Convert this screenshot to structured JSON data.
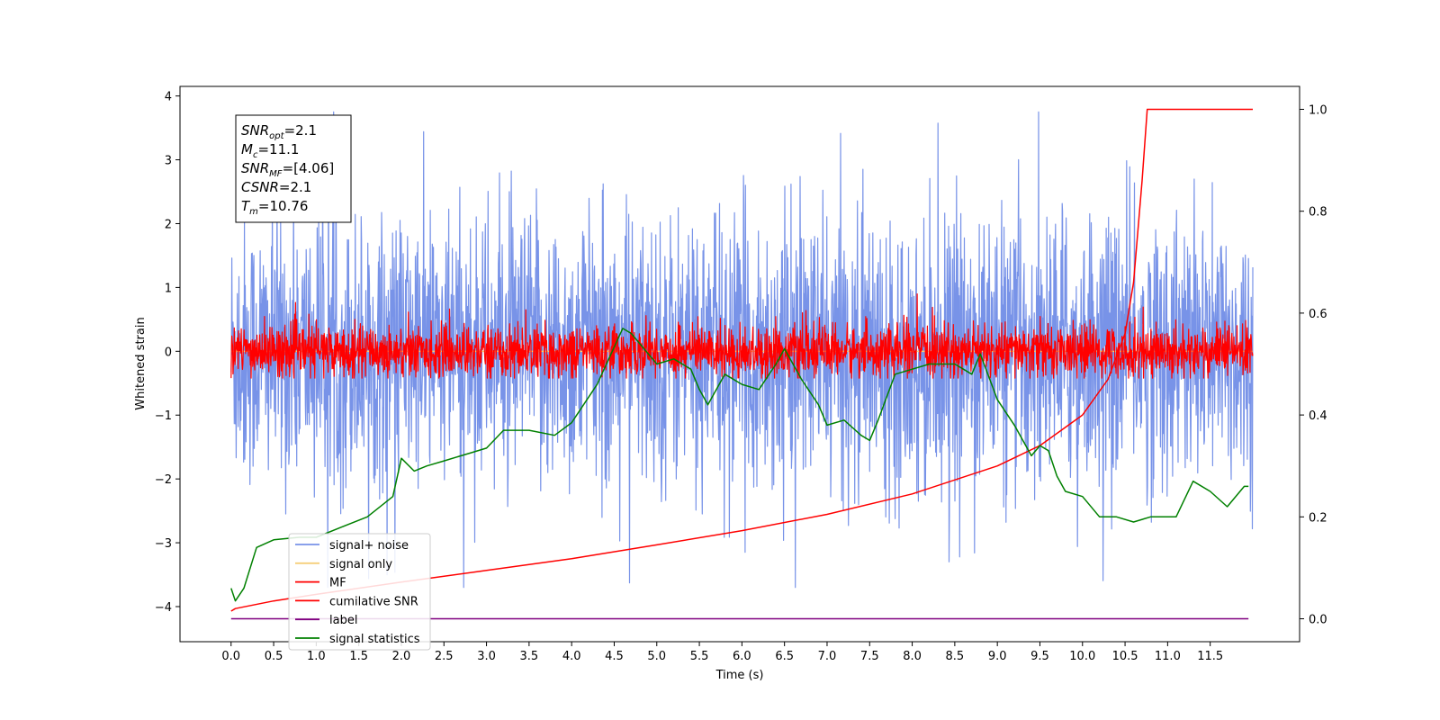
{
  "chart_data": {
    "type": "line",
    "xlabel": "Time (s)",
    "ylabel": "Whitened strain",
    "xlim": [
      -0.6,
      12.55
    ],
    "ylim": [
      -4.55,
      4.15
    ],
    "y2lim": [
      -0.045,
      1.045
    ],
    "x_ticks": [
      0.0,
      0.5,
      1.0,
      1.5,
      2.0,
      2.5,
      3.0,
      3.5,
      4.0,
      4.5,
      5.0,
      5.5,
      6.0,
      6.5,
      7.0,
      7.5,
      8.0,
      8.5,
      9.0,
      9.5,
      10.0,
      10.5,
      11.0,
      11.5
    ],
    "x_tick_labels": [
      "0.0",
      "0.5",
      "1.0",
      "1.5",
      "2.0",
      "2.5",
      "3.0",
      "3.5",
      "4.0",
      "4.5",
      "5.0",
      "5.5",
      "6.0",
      "6.5",
      "7.0",
      "7.5",
      "8.0",
      "8.5",
      "9.0",
      "9.5",
      "10.0",
      "10.5",
      "11.0",
      "11.5"
    ],
    "y_ticks": [
      -4,
      -3,
      -2,
      -1,
      0,
      1,
      2,
      3,
      4
    ],
    "y_tick_labels": [
      "−4",
      "−3",
      "−2",
      "−1",
      "0",
      "1",
      "2",
      "3",
      "4"
    ],
    "y2_ticks": [
      0.0,
      0.2,
      0.4,
      0.6,
      0.8,
      1.0
    ],
    "y2_tick_labels": [
      "0.0",
      "0.2",
      "0.4",
      "0.6",
      "0.8",
      "1.0"
    ],
    "legend_position": "lower-left",
    "annotation": [
      {
        "base": "SNR",
        "sub": "opt",
        "rest": "=2.1"
      },
      {
        "base": "M",
        "sub": "c",
        "rest": "=11.1"
      },
      {
        "base": "SNR",
        "sub": "MF",
        "rest": "=[4.06]"
      },
      {
        "base": "CSNR",
        "sub": "",
        "rest": "=2.1"
      },
      {
        "base": "T",
        "sub": "m",
        "rest": "=10.76"
      }
    ],
    "series": [
      {
        "name": "signal+ noise",
        "color": "#7893e8",
        "axis": "left",
        "kind": "noise",
        "x_range": [
          0.0,
          12.0
        ],
        "amplitude_envelope": [
          -3.7,
          3.75
        ]
      },
      {
        "name": "signal only",
        "color": "#f5cf7a",
        "axis": "left",
        "kind": "flat",
        "x_range": [
          0.0,
          12.0
        ],
        "value": 0.0
      },
      {
        "name": "MF",
        "color": "#ff0000",
        "axis": "left",
        "kind": "noise",
        "x_range": [
          0.0,
          12.0
        ],
        "amplitude_envelope": [
          -0.42,
          0.95
        ]
      },
      {
        "name": "cumilative SNR",
        "color": "#ff0000",
        "axis": "right",
        "x": [
          0.0,
          0.05,
          0.5,
          1.0,
          2.0,
          3.0,
          4.0,
          5.0,
          6.0,
          7.0,
          8.0,
          9.0,
          9.5,
          10.0,
          10.3,
          10.5,
          10.6,
          10.7,
          10.76,
          12.0
        ],
        "y": [
          0.015,
          0.02,
          0.035,
          0.048,
          0.072,
          0.095,
          0.118,
          0.145,
          0.173,
          0.205,
          0.245,
          0.3,
          0.34,
          0.4,
          0.47,
          0.56,
          0.66,
          0.86,
          1.0,
          1.0
        ]
      },
      {
        "name": "label",
        "color": "#800080",
        "axis": "right",
        "x": [
          0.0,
          11.95
        ],
        "y": [
          0.0,
          0.0
        ]
      },
      {
        "name": "signal statistics",
        "color": "#008000",
        "axis": "right",
        "x": [
          0.0,
          0.05,
          0.15,
          0.3,
          0.5,
          0.8,
          1.0,
          1.3,
          1.6,
          1.9,
          2.0,
          2.15,
          2.3,
          2.5,
          2.8,
          3.0,
          3.2,
          3.5,
          3.8,
          4.0,
          4.3,
          4.6,
          4.7,
          4.9,
          5.0,
          5.2,
          5.4,
          5.5,
          5.6,
          5.8,
          6.0,
          6.2,
          6.4,
          6.5,
          6.7,
          6.9,
          7.0,
          7.2,
          7.4,
          7.5,
          7.6,
          7.8,
          8.0,
          8.2,
          8.5,
          8.7,
          8.8,
          9.0,
          9.2,
          9.4,
          9.5,
          9.6,
          9.7,
          9.8,
          10.0,
          10.2,
          10.4,
          10.6,
          10.8,
          11.0,
          11.1,
          11.3,
          11.5,
          11.7,
          11.9,
          11.95
        ],
        "y": [
          0.06,
          0.035,
          0.06,
          0.14,
          0.155,
          0.16,
          0.16,
          0.18,
          0.2,
          0.24,
          0.315,
          0.29,
          0.3,
          0.31,
          0.325,
          0.335,
          0.37,
          0.37,
          0.36,
          0.385,
          0.46,
          0.57,
          0.56,
          0.52,
          0.5,
          0.51,
          0.49,
          0.45,
          0.42,
          0.48,
          0.46,
          0.45,
          0.5,
          0.53,
          0.47,
          0.42,
          0.38,
          0.39,
          0.36,
          0.35,
          0.39,
          0.48,
          0.49,
          0.5,
          0.5,
          0.48,
          0.52,
          0.43,
          0.38,
          0.32,
          0.34,
          0.33,
          0.28,
          0.25,
          0.24,
          0.2,
          0.2,
          0.19,
          0.2,
          0.2,
          0.2,
          0.27,
          0.25,
          0.22,
          0.26,
          0.26
        ]
      }
    ]
  }
}
